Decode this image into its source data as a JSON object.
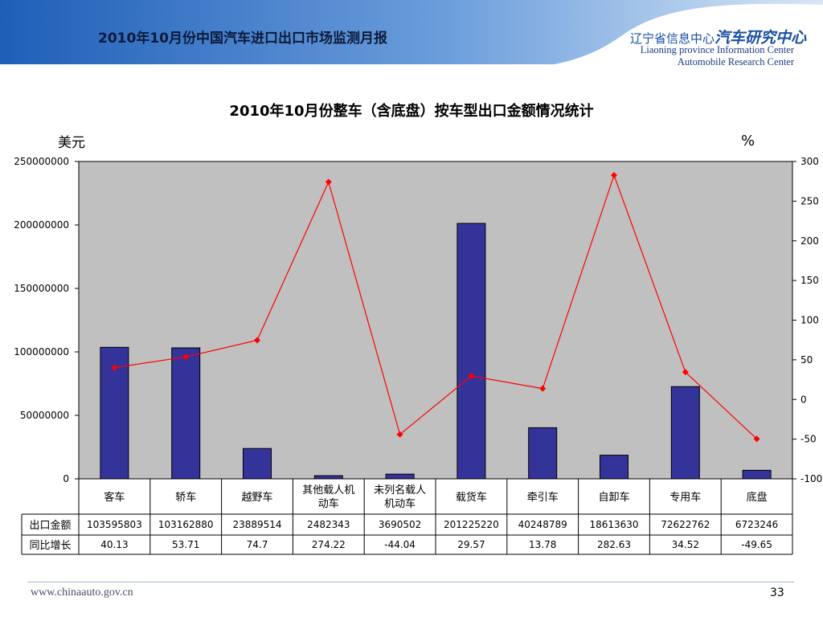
{
  "header": {
    "title": "2010年10月份中国汽车进口出口市场监测月报",
    "org_cn_prefix": "辽宁省信息中心",
    "org_cn_suffix": "汽车研究中心",
    "org_en_line1": "Liaoning province Information Center",
    "org_en_line2": "Automobile Research Center"
  },
  "footer": {
    "url": "www.chinaauto.gov.cn",
    "page_number": "33"
  },
  "colors": {
    "bar": "#333399",
    "line": "#ff0000",
    "plot_bg": "#c0c0c0",
    "header_blue": "#5b8ed0"
  },
  "chart_data": {
    "type": "bar",
    "title": "2010年10月份整车（含底盘）按车型出口金额情况统计",
    "ylabel": "美元",
    "y2label": "%",
    "ylim": [
      0,
      250000000
    ],
    "y2lim": [
      -100,
      300
    ],
    "yticks": [
      "250000000",
      "200000000",
      "150000000",
      "100000000",
      "50000000",
      "0"
    ],
    "y2ticks": [
      "300",
      "250",
      "200",
      "150",
      "100",
      "50",
      "0",
      "-50",
      "-100"
    ],
    "grid": false,
    "categories": [
      "客车",
      "轿车",
      "越野车",
      "其他载人机动车",
      "未列名载人机动车",
      "载货车",
      "牵引车",
      "自卸车",
      "专用车",
      "底盘"
    ],
    "category_lines": [
      [
        "客车"
      ],
      [
        "轿车"
      ],
      [
        "越野车"
      ],
      [
        "其他载人机",
        "动车"
      ],
      [
        "未列名载人",
        "机动车"
      ],
      [
        "载货车"
      ],
      [
        "牵引车"
      ],
      [
        "自卸车"
      ],
      [
        "专用车"
      ],
      [
        "底盘"
      ]
    ],
    "series": [
      {
        "name": "出口金额",
        "type": "bar",
        "axis": "left",
        "values": [
          103595803,
          103162880,
          23889514,
          2482343,
          3690502,
          201225220,
          40248789,
          18613630,
          72622762,
          6723246
        ],
        "labels": [
          "103595803",
          "103162880",
          "23889514",
          "2482343",
          "3690502",
          "201225220",
          "40248789",
          "18613630",
          "72622762",
          "6723246"
        ]
      },
      {
        "name": "同比增长",
        "type": "line",
        "axis": "right",
        "values": [
          40.13,
          53.71,
          74.7,
          274.22,
          -44.04,
          29.57,
          13.78,
          282.63,
          34.52,
          -49.65
        ],
        "labels": [
          "40.13",
          "53.71",
          "74.7",
          "274.22",
          "-44.04",
          "29.57",
          "13.78",
          "282.63",
          "34.52",
          "-49.65"
        ]
      }
    ]
  }
}
